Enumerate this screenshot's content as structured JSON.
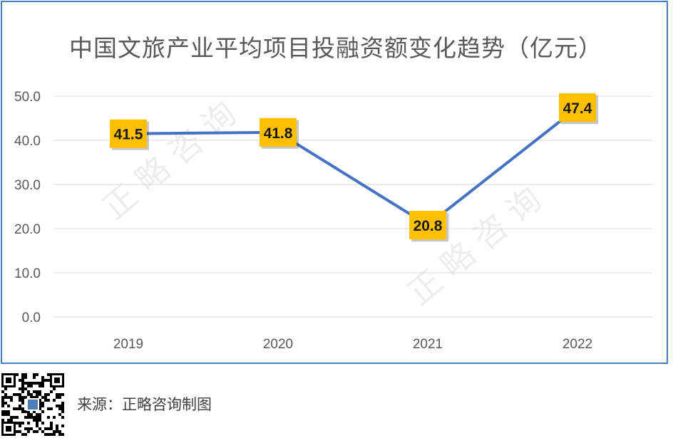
{
  "chart_data": {
    "type": "line",
    "title": "中国文旅产业平均项目投融资额变化趋势（亿元）",
    "categories": [
      "2019",
      "2020",
      "2021",
      "2022"
    ],
    "series": [
      {
        "values": [
          41.5,
          41.8,
          20.8,
          47.4
        ]
      }
    ],
    "data_labels": [
      "41.5",
      "41.8",
      "20.8",
      "47.4"
    ],
    "y_ticks": [
      "0.0",
      "10.0",
      "20.0",
      "30.0",
      "40.0",
      "50.0"
    ],
    "ylim": [
      0,
      50
    ],
    "grid": true,
    "legend": "none",
    "watermark": "正略咨询",
    "colors": {
      "line": "#4472c4",
      "label_bg": "#ffc000",
      "grid": "#d9d9d9",
      "frame": "#4a7ebb"
    }
  },
  "footer": {
    "source": "来源：正略咨询制图"
  }
}
